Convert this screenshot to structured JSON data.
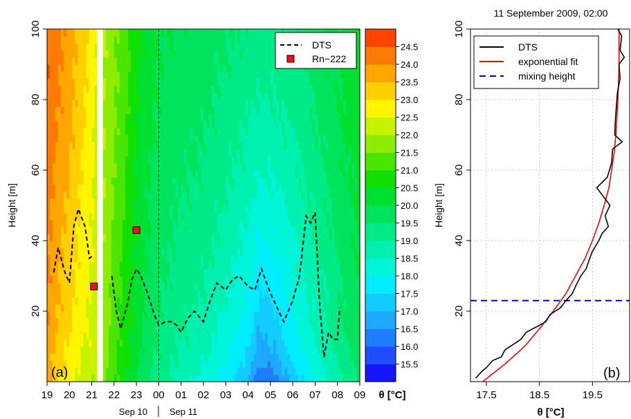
{
  "chart_data": [
    {
      "type": "heatmap",
      "panel_label": "(a)",
      "ylabel": "Height [m]",
      "ylim": [
        0,
        100
      ],
      "y_ticks": [
        20,
        40,
        60,
        80,
        100
      ],
      "x_hours": [
        19,
        20,
        21,
        22,
        23,
        0,
        1,
        2,
        3,
        4,
        5,
        6,
        7,
        8,
        9
      ],
      "x_tick_labels": [
        "19",
        "20",
        "21",
        "22",
        "23",
        "00",
        "01",
        "02",
        "03",
        "04",
        "05",
        "06",
        "07",
        "08",
        "09"
      ],
      "date_labels": [
        "Sep 10",
        "Sep 11"
      ],
      "data_gap_hours": [
        21.3,
        21.55
      ],
      "colorbar": {
        "label": "θ [°C]",
        "range": [
          15.0,
          25.0
        ],
        "tick_labels": [
          "24.5",
          "24.0",
          "23.5",
          "23.0",
          "22.5",
          "22.0",
          "21.5",
          "21.0",
          "20.5",
          "20.0",
          "19.5",
          "19.0",
          "18.5",
          "18.0",
          "17.5",
          "17.0",
          "16.5",
          "16.0",
          "15.5"
        ],
        "colors": [
          "#1515ff",
          "#1e4cff",
          "#1e7dff",
          "#1ea8ff",
          "#12ccff",
          "#00ecff",
          "#00f5d8",
          "#00f0b0",
          "#00eb88",
          "#00e35c",
          "#00e030",
          "#10e000",
          "#4ae500",
          "#8ced00",
          "#c8f200",
          "#fff500",
          "#ffd000",
          "#ffa600",
          "#ff7a00",
          "#ff4400"
        ]
      },
      "surface_temperature": [
        {
          "hour": 19.0,
          "theta": 23.6
        },
        {
          "hour": 19.5,
          "theta": 23.0
        },
        {
          "hour": 20.0,
          "theta": 22.6
        },
        {
          "hour": 20.5,
          "theta": 22.3
        },
        {
          "hour": 21.0,
          "theta": 22.1
        },
        {
          "hour": 21.6,
          "theta": 21.6
        },
        {
          "hour": 22.0,
          "theta": 21.0
        },
        {
          "hour": 22.5,
          "theta": 20.5
        },
        {
          "hour": 23.0,
          "theta": 20.0
        },
        {
          "hour": 23.5,
          "theta": 19.5
        },
        {
          "hour": 24.0,
          "theta": 19.2
        },
        {
          "hour": 25.0,
          "theta": 18.6
        },
        {
          "hour": 26.0,
          "theta": 18.2
        },
        {
          "hour": 27.0,
          "theta": 17.6
        },
        {
          "hour": 28.0,
          "theta": 16.8
        },
        {
          "hour": 28.5,
          "theta": 15.8
        },
        {
          "hour": 29.0,
          "theta": 15.9
        },
        {
          "hour": 29.5,
          "theta": 16.4
        },
        {
          "hour": 30.0,
          "theta": 17.0
        },
        {
          "hour": 31.0,
          "theta": 17.8
        },
        {
          "hour": 32.0,
          "theta": 18.8
        },
        {
          "hour": 33.0,
          "theta": 19.6
        }
      ],
      "top_temperature": [
        {
          "hour": 19.0,
          "theta": 24.5
        },
        {
          "hour": 20.0,
          "theta": 23.8
        },
        {
          "hour": 21.0,
          "theta": 22.8
        },
        {
          "hour": 21.6,
          "theta": 22.0
        },
        {
          "hour": 22.5,
          "theta": 21.2
        },
        {
          "hour": 23.0,
          "theta": 20.6
        },
        {
          "hour": 24.0,
          "theta": 20.0
        },
        {
          "hour": 26.0,
          "theta": 19.8
        },
        {
          "hour": 28.0,
          "theta": 19.4
        },
        {
          "hour": 30.0,
          "theta": 19.4
        },
        {
          "hour": 31.0,
          "theta": 19.8
        },
        {
          "hour": 33.0,
          "theta": 20.4
        }
      ],
      "series": [
        {
          "name": "DTS",
          "style": "dashed",
          "points": [
            {
              "hour": 19.3,
              "height": 31
            },
            {
              "hour": 19.5,
              "height": 38
            },
            {
              "hour": 19.8,
              "height": 31
            },
            {
              "hour": 20.0,
              "height": 28
            },
            {
              "hour": 20.2,
              "height": 44
            },
            {
              "hour": 20.4,
              "height": 49
            },
            {
              "hour": 20.7,
              "height": 44
            },
            {
              "hour": 20.9,
              "height": 35
            },
            {
              "hour": 21.1,
              "height": 36
            },
            {
              "hour": 21.9,
              "height": 30
            },
            {
              "hour": 22.1,
              "height": 20
            },
            {
              "hour": 22.3,
              "height": 15
            },
            {
              "hour": 22.6,
              "height": 22
            },
            {
              "hour": 22.8,
              "height": 29
            },
            {
              "hour": 23.0,
              "height": 32
            },
            {
              "hour": 23.2,
              "height": 30
            },
            {
              "hour": 23.5,
              "height": 25
            },
            {
              "hour": 23.8,
              "height": 19
            },
            {
              "hour": 24.0,
              "height": 16
            },
            {
              "hour": 24.3,
              "height": 17
            },
            {
              "hour": 24.6,
              "height": 17
            },
            {
              "hour": 24.8,
              "height": 16
            },
            {
              "hour": 25.0,
              "height": 14
            },
            {
              "hour": 25.3,
              "height": 18
            },
            {
              "hour": 25.6,
              "height": 20
            },
            {
              "hour": 26.0,
              "height": 17
            },
            {
              "hour": 26.3,
              "height": 23
            },
            {
              "hour": 26.6,
              "height": 28
            },
            {
              "hour": 27.0,
              "height": 26
            },
            {
              "hour": 27.3,
              "height": 29
            },
            {
              "hour": 27.6,
              "height": 30
            },
            {
              "hour": 28.0,
              "height": 27
            },
            {
              "hour": 28.3,
              "height": 26
            },
            {
              "hour": 28.6,
              "height": 32
            },
            {
              "hour": 29.0,
              "height": 25
            },
            {
              "hour": 29.3,
              "height": 21
            },
            {
              "hour": 29.6,
              "height": 17
            },
            {
              "hour": 30.0,
              "height": 23
            },
            {
              "hour": 30.3,
              "height": 30
            },
            {
              "hour": 30.6,
              "height": 47
            },
            {
              "hour": 30.8,
              "height": 45
            },
            {
              "hour": 31.0,
              "height": 48
            },
            {
              "hour": 31.2,
              "height": 22
            },
            {
              "hour": 31.4,
              "height": 7
            },
            {
              "hour": 31.6,
              "height": 14
            },
            {
              "hour": 31.8,
              "height": 12
            },
            {
              "hour": 32.0,
              "height": 12
            },
            {
              "hour": 32.1,
              "height": 21
            }
          ]
        },
        {
          "name": "Rn−222",
          "style": "markers",
          "points": [
            {
              "hour": 21.1,
              "height": 27
            },
            {
              "hour": 23.0,
              "height": 43
            }
          ]
        }
      ]
    },
    {
      "type": "line",
      "title": "11 September 2009, 02:00",
      "panel_label": "(b)",
      "xlabel": "θ [°C]",
      "ylabel": "Height [m]",
      "xlim": [
        17.2,
        20.2
      ],
      "ylim": [
        0,
        100
      ],
      "x_ticks": [
        "17.5",
        "18.5",
        "19.5"
      ],
      "y_ticks": [
        20,
        40,
        60,
        80,
        100
      ],
      "grid": true,
      "legend_position": "top-left",
      "series": [
        {
          "name": "DTS",
          "color": "#000000",
          "points": [
            {
              "theta": 17.3,
              "height": 1
            },
            {
              "theta": 17.42,
              "height": 3
            },
            {
              "theta": 17.5,
              "height": 4
            },
            {
              "theta": 17.62,
              "height": 6
            },
            {
              "theta": 17.78,
              "height": 7
            },
            {
              "theta": 17.85,
              "height": 9
            },
            {
              "theta": 18.05,
              "height": 11
            },
            {
              "theta": 18.15,
              "height": 12
            },
            {
              "theta": 18.25,
              "height": 14
            },
            {
              "theta": 18.5,
              "height": 16
            },
            {
              "theta": 18.62,
              "height": 17
            },
            {
              "theta": 18.7,
              "height": 19
            },
            {
              "theta": 18.9,
              "height": 21
            },
            {
              "theta": 19.0,
              "height": 23
            },
            {
              "theta": 19.12,
              "height": 25
            },
            {
              "theta": 19.18,
              "height": 27
            },
            {
              "theta": 19.28,
              "height": 30
            },
            {
              "theta": 19.38,
              "height": 32
            },
            {
              "theta": 19.45,
              "height": 35
            },
            {
              "theta": 19.5,
              "height": 37
            },
            {
              "theta": 19.62,
              "height": 40
            },
            {
              "theta": 19.68,
              "height": 42
            },
            {
              "theta": 19.8,
              "height": 44
            },
            {
              "theta": 19.74,
              "height": 47
            },
            {
              "theta": 19.83,
              "height": 50
            },
            {
              "theta": 19.58,
              "height": 55
            },
            {
              "theta": 19.78,
              "height": 58
            },
            {
              "theta": 19.86,
              "height": 62
            },
            {
              "theta": 19.88,
              "height": 66
            },
            {
              "theta": 20.06,
              "height": 68
            },
            {
              "theta": 19.92,
              "height": 70
            },
            {
              "theta": 19.93,
              "height": 74
            },
            {
              "theta": 19.95,
              "height": 78
            },
            {
              "theta": 19.97,
              "height": 82
            },
            {
              "theta": 20.02,
              "height": 86
            },
            {
              "theta": 20.0,
              "height": 90
            },
            {
              "theta": 20.1,
              "height": 92
            },
            {
              "theta": 20.02,
              "height": 94
            },
            {
              "theta": 20.05,
              "height": 98
            },
            {
              "theta": 19.98,
              "height": 100
            }
          ]
        },
        {
          "name": "exponential fit",
          "color": "#ff0000",
          "points": [
            {
              "theta": 17.43,
              "height": 0
            },
            {
              "theta": 17.85,
              "height": 5
            },
            {
              "theta": 18.22,
              "height": 10
            },
            {
              "theta": 18.5,
              "height": 15
            },
            {
              "theta": 18.76,
              "height": 20
            },
            {
              "theta": 19.0,
              "height": 25
            },
            {
              "theta": 19.18,
              "height": 30
            },
            {
              "theta": 19.36,
              "height": 35
            },
            {
              "theta": 19.5,
              "height": 40
            },
            {
              "theta": 19.62,
              "height": 45
            },
            {
              "theta": 19.72,
              "height": 50
            },
            {
              "theta": 19.81,
              "height": 55
            },
            {
              "theta": 19.86,
              "height": 60
            },
            {
              "theta": 19.91,
              "height": 65
            },
            {
              "theta": 19.94,
              "height": 70
            },
            {
              "theta": 19.96,
              "height": 75
            },
            {
              "theta": 19.98,
              "height": 80
            },
            {
              "theta": 19.99,
              "height": 85
            },
            {
              "theta": 20.0,
              "height": 90
            },
            {
              "theta": 20.0,
              "height": 100
            }
          ]
        },
        {
          "name": "mixing height",
          "color": "#0000cc",
          "height": 23
        }
      ]
    }
  ]
}
